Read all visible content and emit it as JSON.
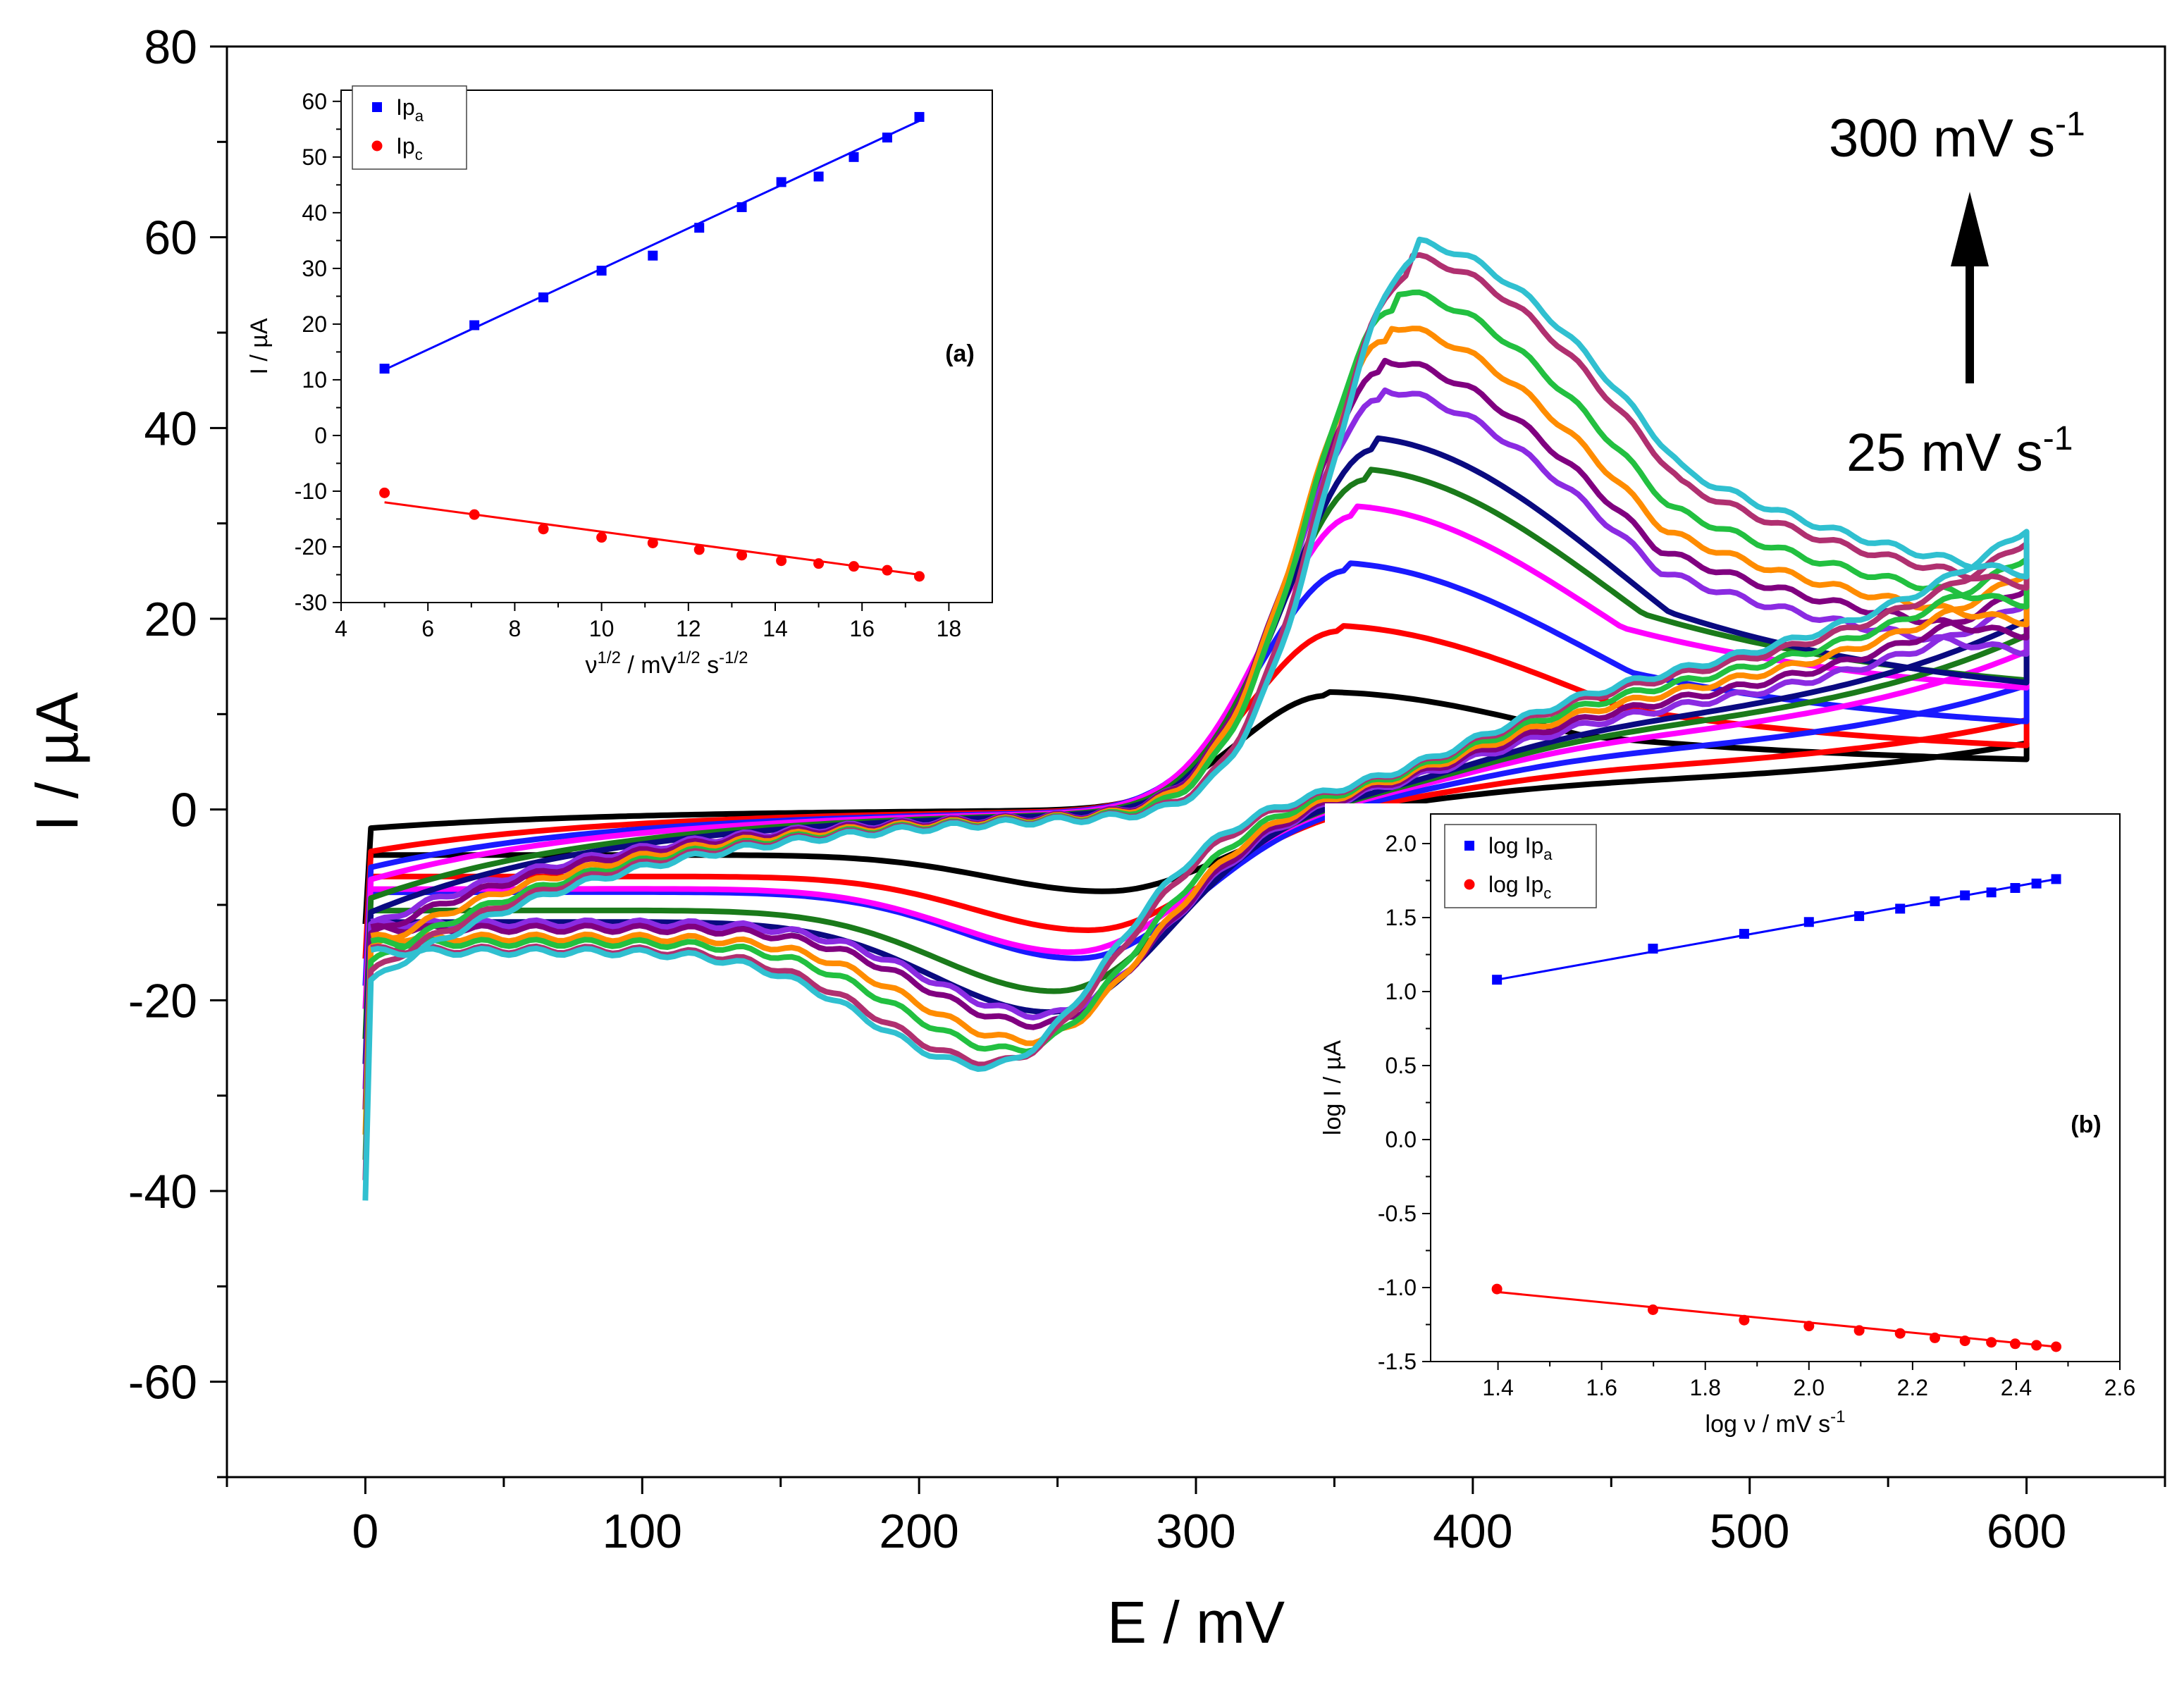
{
  "chart_data": [
    {
      "id": "main",
      "type": "line",
      "xlabel": "E / mV",
      "ylabel": "I / µA",
      "xlim": [
        -50,
        650
      ],
      "ylim": [
        -70,
        80
      ],
      "xticks": [
        0,
        100,
        200,
        300,
        400,
        500,
        600
      ],
      "yticks": [
        -60,
        -40,
        -20,
        0,
        20,
        40,
        60,
        80
      ],
      "grid": false,
      "legend": "none",
      "annotations": {
        "top": "300 mV s",
        "top_sup": "-1",
        "bottom": "25 mV s",
        "bottom_sup": "-1",
        "arrow": "up"
      },
      "series": [
        {
          "color": "#000000",
          "ipa": 12.0,
          "epa": 348,
          "ipc": -8.7,
          "epc": 268,
          "start": -2.0,
          "tail_a": 4.5,
          "tail_c": 4.8
        },
        {
          "color": "#ff0000",
          "ipa": 18.8,
          "epa": 352,
          "ipc": -12.8,
          "epc": 262,
          "start": -4.5,
          "tail_a": 5.3,
          "tail_c": 6.0
        },
        {
          "color": "#1a1aff",
          "ipa": 25.2,
          "epa": 355,
          "ipc": -15.8,
          "epc": 258,
          "start": -6.2,
          "tail_a": 7.3,
          "tail_c": 8.5
        },
        {
          "color": "#ff00ff",
          "ipa": 31.0,
          "epa": 358,
          "ipc": -15.2,
          "epc": 256,
          "start": -7.5,
          "tail_a": 10.5,
          "tail_c": 11.0
        },
        {
          "color": "#1a7a1a",
          "ipa": 34.8,
          "epa": 362,
          "ipc": -19.3,
          "epc": 250,
          "start": -9.5,
          "tail_a": 10.8,
          "tail_c": 12.0
        },
        {
          "color": "#0a0a80",
          "ipa": 38.0,
          "epa": 365,
          "ipc": -21.5,
          "epc": 248,
          "start": -11.0,
          "tail_a": 10.0,
          "tail_c": 13.0
        },
        {
          "color": "#8b2be2",
          "ipa": 43.0,
          "epa": 367,
          "ipc": -21.8,
          "epc": 246,
          "start": -12.5,
          "tail_a": 13.0,
          "tail_c": 14.0
        },
        {
          "color": "#800080",
          "ipa": 46.0,
          "epa": 368,
          "ipc": -22.8,
          "epc": 244,
          "start": -13.5,
          "tail_a": 14.5,
          "tail_c": 15.0
        },
        {
          "color": "#ff8c00",
          "ipa": 49.5,
          "epa": 370,
          "ipc": -24.5,
          "epc": 240,
          "start": -15.0,
          "tail_a": 15.5,
          "tail_c": 16.0
        },
        {
          "color": "#22c040",
          "ipa": 53.0,
          "epa": 373,
          "ipc": -25.5,
          "epc": 235,
          "start": -16.5,
          "tail_a": 17.0,
          "tail_c": 17.0
        },
        {
          "color": "#b03070",
          "ipa": 56.5,
          "epa": 378,
          "ipc": -26.8,
          "epc": 228,
          "start": -17.5,
          "tail_a": 18.5,
          "tail_c": 18.0
        },
        {
          "color": "#30c0d0",
          "ipa": 58.0,
          "epa": 380,
          "ipc": -27.2,
          "epc": 225,
          "start": -18.5,
          "tail_a": 19.5,
          "tail_c": 19.0
        }
      ]
    },
    {
      "id": "inset-a",
      "type": "scatter",
      "tag": "(a)",
      "xlabel_parts": [
        "ν",
        "1/2",
        " / mV",
        "1/2",
        " s",
        "-1/2"
      ],
      "ylabel": "I / µA",
      "xlim": [
        4,
        19
      ],
      "ylim": [
        -30,
        62
      ],
      "xticks": [
        4,
        6,
        8,
        10,
        12,
        14,
        16,
        18
      ],
      "yticks": [
        -30,
        -20,
        -10,
        0,
        10,
        20,
        30,
        40,
        50,
        60
      ],
      "legend": "top-left",
      "series": [
        {
          "name": "Ip",
          "sub": "a",
          "color": "#0000ff",
          "marker": "square",
          "x": [
            5.0,
            7.07,
            8.66,
            10.0,
            11.18,
            12.25,
            13.23,
            14.14,
            15.0,
            15.81,
            16.58,
            17.32
          ],
          "y": [
            12.0,
            19.8,
            24.8,
            29.6,
            32.3,
            37.3,
            41.0,
            45.5,
            46.5,
            50.0,
            53.5,
            57.2
          ],
          "fit": [
            [
              5.0,
              11.8
            ],
            [
              17.32,
              56.5
            ]
          ]
        },
        {
          "name": "Ip",
          "sub": "c",
          "color": "#ff0000",
          "marker": "circle",
          "x": [
            5.0,
            7.07,
            8.66,
            10.0,
            11.18,
            12.25,
            13.23,
            14.14,
            15.0,
            15.81,
            16.58,
            17.32
          ],
          "y": [
            -10.3,
            -14.2,
            -16.8,
            -18.3,
            -19.3,
            -20.5,
            -21.5,
            -22.5,
            -23.0,
            -23.5,
            -24.2,
            -25.3
          ],
          "fit": [
            [
              5.0,
              -12.0
            ],
            [
              17.32,
              -25.0
            ]
          ]
        }
      ]
    },
    {
      "id": "inset-b",
      "type": "scatter",
      "tag": "(b)",
      "xlabel": "log ν / mV s",
      "xlabel_sup": "-1",
      "ylabel": "log I / µA",
      "xlim": [
        1.27,
        2.6
      ],
      "ylim": [
        -1.5,
        2.2
      ],
      "xticks": [
        1.4,
        1.6,
        1.8,
        2.0,
        2.2,
        2.4,
        2.6
      ],
      "yticks": [
        -1.5,
        -1.0,
        -0.5,
        0.0,
        0.5,
        1.0,
        1.5,
        2.0
      ],
      "legend": "top-left",
      "series": [
        {
          "name": "log Ip",
          "sub": "a",
          "color": "#0000ff",
          "marker": "square",
          "x": [
            1.398,
            1.699,
            1.875,
            2.0,
            2.097,
            2.176,
            2.243,
            2.301,
            2.352,
            2.398,
            2.439,
            2.477
          ],
          "y": [
            1.08,
            1.29,
            1.39,
            1.47,
            1.51,
            1.56,
            1.61,
            1.65,
            1.67,
            1.7,
            1.73,
            1.76
          ],
          "fit": [
            [
              1.398,
              1.08
            ],
            [
              2.477,
              1.76
            ]
          ]
        },
        {
          "name": "log Ip",
          "sub": "c",
          "color": "#ff0000",
          "marker": "circle",
          "x": [
            1.398,
            1.699,
            1.875,
            2.0,
            2.097,
            2.176,
            2.243,
            2.301,
            2.352,
            2.398,
            2.439,
            2.477
          ],
          "y": [
            -1.01,
            -1.15,
            -1.22,
            -1.26,
            -1.29,
            -1.31,
            -1.34,
            -1.36,
            -1.37,
            -1.38,
            -1.39,
            -1.4
          ],
          "fit": [
            [
              1.398,
              -1.03
            ],
            [
              2.477,
              -1.4
            ]
          ]
        }
      ]
    }
  ]
}
